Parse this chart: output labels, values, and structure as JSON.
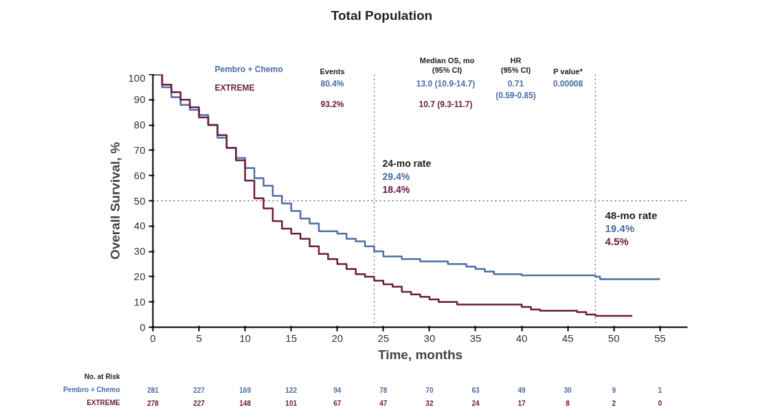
{
  "chart_data": {
    "type": "step",
    "title": "Total Population",
    "xlabel": "Time, months",
    "ylabel": "Overall Survival, %",
    "xlim": [
      0,
      58
    ],
    "ylim": [
      0,
      100
    ],
    "xticks": [
      0,
      5,
      10,
      15,
      20,
      25,
      30,
      35,
      40,
      45,
      50,
      55
    ],
    "yticks": [
      0,
      10,
      20,
      30,
      40,
      50,
      60,
      70,
      80,
      90,
      100
    ],
    "grid": false,
    "line_style": "solid",
    "series": [
      {
        "name": "Pembro + Chemo",
        "color": "#4a6fa5",
        "x": [
          0,
          1,
          2,
          3,
          4,
          5,
          6,
          7,
          8,
          9,
          10,
          11,
          12,
          13,
          14,
          15,
          16,
          17,
          18,
          19,
          20,
          21,
          22,
          23,
          24,
          25,
          26,
          27,
          28,
          29,
          30,
          32,
          34,
          35,
          36,
          37,
          38,
          40,
          42,
          48,
          48.5,
          55
        ],
        "values": [
          100,
          95,
          91,
          88,
          86,
          84,
          80,
          75,
          71,
          67,
          63,
          59,
          56,
          52,
          49,
          46,
          43,
          41,
          38,
          38,
          37,
          35,
          34,
          32,
          30,
          28,
          28,
          27,
          27,
          26,
          26,
          25,
          24,
          23,
          22,
          21,
          21,
          20.5,
          20.5,
          20,
          19,
          19
        ]
      },
      {
        "name": "EXTREME",
        "color": "#6b1a3c",
        "x": [
          0,
          1,
          2,
          3,
          4,
          5,
          6,
          7,
          8,
          9,
          10,
          11,
          12,
          13,
          14,
          15,
          16,
          17,
          18,
          19,
          20,
          21,
          22,
          23,
          24,
          25,
          26,
          27,
          28,
          29,
          30,
          31,
          33,
          36,
          40,
          41,
          42,
          46,
          47,
          48,
          52
        ],
        "values": [
          100,
          96,
          93,
          90,
          87,
          83,
          80,
          76,
          71,
          66,
          58,
          51,
          47,
          42,
          39,
          37,
          35,
          32,
          29,
          27,
          25,
          23,
          21,
          20,
          18.4,
          17,
          16,
          14,
          13,
          12,
          11,
          10,
          9,
          9,
          8,
          7,
          6.5,
          6,
          5,
          4.5,
          4.5
        ]
      }
    ],
    "ref_lines": [
      {
        "axis": "x",
        "value": 24,
        "color": "#666666",
        "line_style": "dotted"
      },
      {
        "axis": "x",
        "value": 48,
        "color": "#666666",
        "line_style": "dotted"
      },
      {
        "axis": "y",
        "value": 50,
        "color": "#666666",
        "line_style": "dotted"
      }
    ],
    "annotations": [
      "Events",
      "Median OS, mo",
      "(95% CI)",
      "HR",
      "(95% CI)",
      "P value*",
      "80.4%",
      "13.0 (10.9-14.7)",
      "0.71",
      "(0.59-0.85)",
      "0.00008",
      "93.2%",
      "10.7 (9.3-11.7)",
      "24-mo rate",
      "29.4%",
      "18.4%",
      "48-mo rate",
      "19.4%",
      "4.5%",
      "No. at Risk",
      "281",
      "227",
      "169",
      "122",
      "94",
      "78",
      "70",
      "63",
      "49",
      "30",
      "9",
      "1",
      "278",
      "227",
      "148",
      "101",
      "67",
      "47",
      "32",
      "24",
      "17",
      "8",
      "2",
      "0"
    ]
  }
}
